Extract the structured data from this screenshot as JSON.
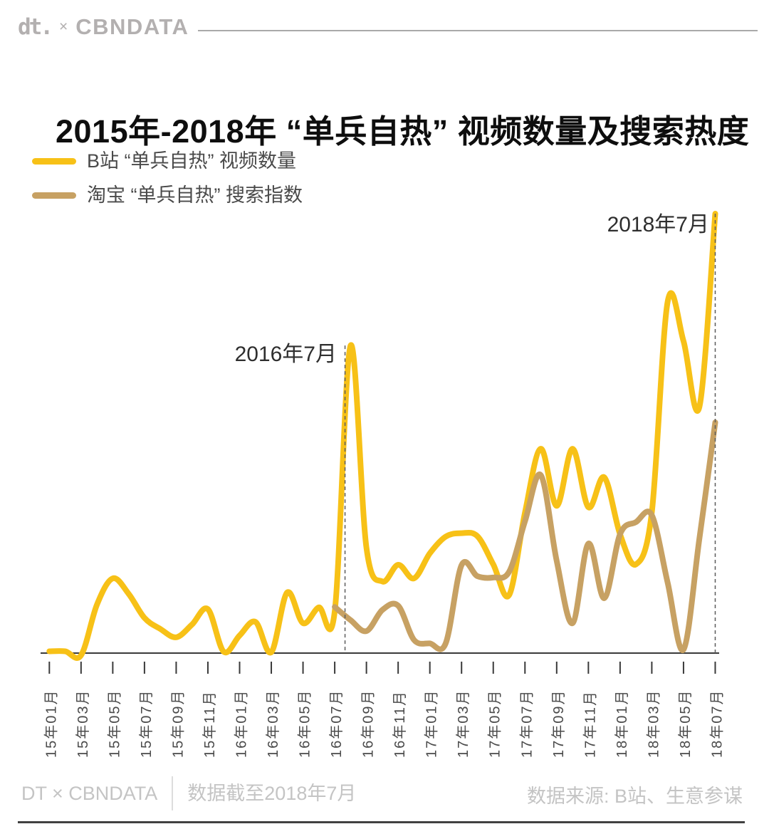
{
  "header": {
    "logo_dt": "dt.",
    "logo_multiply": "×",
    "logo_cbndata": "CBNDATA"
  },
  "title": "2015年-2018年 “单兵自热” 视频数量及搜索热度",
  "legend": [
    {
      "label": "B站 “单兵自热” 视频数量",
      "color": "#F7C117"
    },
    {
      "label": "淘宝 “单兵自热” 搜索指数",
      "color": "#C7A163"
    }
  ],
  "chart_data": {
    "type": "line",
    "title": "2015年-2018年 “单兵自热” 视频数量及搜索热度",
    "x_unit": "month",
    "x_start": "15年01月",
    "x_end": "18年07月",
    "x_months_count": 43,
    "x_tick_labels": [
      "15年01月",
      "15年03月",
      "15年05月",
      "15年07月",
      "15年09月",
      "15年11月",
      "16年01月",
      "16年03月",
      "16年05月",
      "16年07月",
      "16年09月",
      "16年11月",
      "17年01月",
      "17年03月",
      "17年05月",
      "17年07月",
      "17年09月",
      "17年11月",
      "18年01月",
      "18年03月",
      "18年05月",
      "18年07月"
    ],
    "y_axis": {
      "visible": false,
      "normalized_scale": [
        0,
        100
      ],
      "note": "values normalized, 100 = 2018-07 peak"
    },
    "grid": false,
    "legend_position": "top-left",
    "series": [
      {
        "name": "B站 “单兵自热” 视频数量",
        "color": "#F7C117",
        "values": [
          0.4,
          0.4,
          -0.5,
          11,
          17,
          13.5,
          8,
          5.5,
          3.6,
          6.5,
          10,
          0.3,
          4,
          7.1,
          0.2,
          13.8,
          6.8,
          10.4,
          9.5,
          70,
          24,
          16.3,
          20.1,
          17,
          22.7,
          26.5,
          27.3,
          26.6,
          20.2,
          13.2,
          32,
          46.5,
          33.5,
          46.5,
          33.2,
          40,
          27,
          20.2,
          32,
          80,
          71,
          56,
          100
        ]
      },
      {
        "name": "淘宝 “单兵自热” 搜索指数",
        "color": "#C7A163",
        "values": [
          null,
          null,
          null,
          null,
          null,
          null,
          null,
          null,
          null,
          null,
          null,
          null,
          null,
          null,
          null,
          null,
          null,
          null,
          10.5,
          7.5,
          5,
          9.8,
          10.8,
          3,
          2.2,
          2.2,
          20,
          17.5,
          17.2,
          18.5,
          30,
          40.5,
          21,
          6.8,
          24.9,
          12.5,
          27.1,
          29.8,
          31.4,
          16,
          0.8,
          26,
          52.5
        ]
      }
    ],
    "annotations": [
      {
        "label": "2016年7月",
        "month_index": 18.65,
        "line_top_value": 70
      },
      {
        "label": "2018年7月",
        "month_index": 42,
        "line_top_value": 100
      }
    ]
  },
  "footer": {
    "brand": "DT × CBNDATA",
    "cutoff": "数据截至2018年7月",
    "source": "数据来源: B站、生意参谋"
  }
}
